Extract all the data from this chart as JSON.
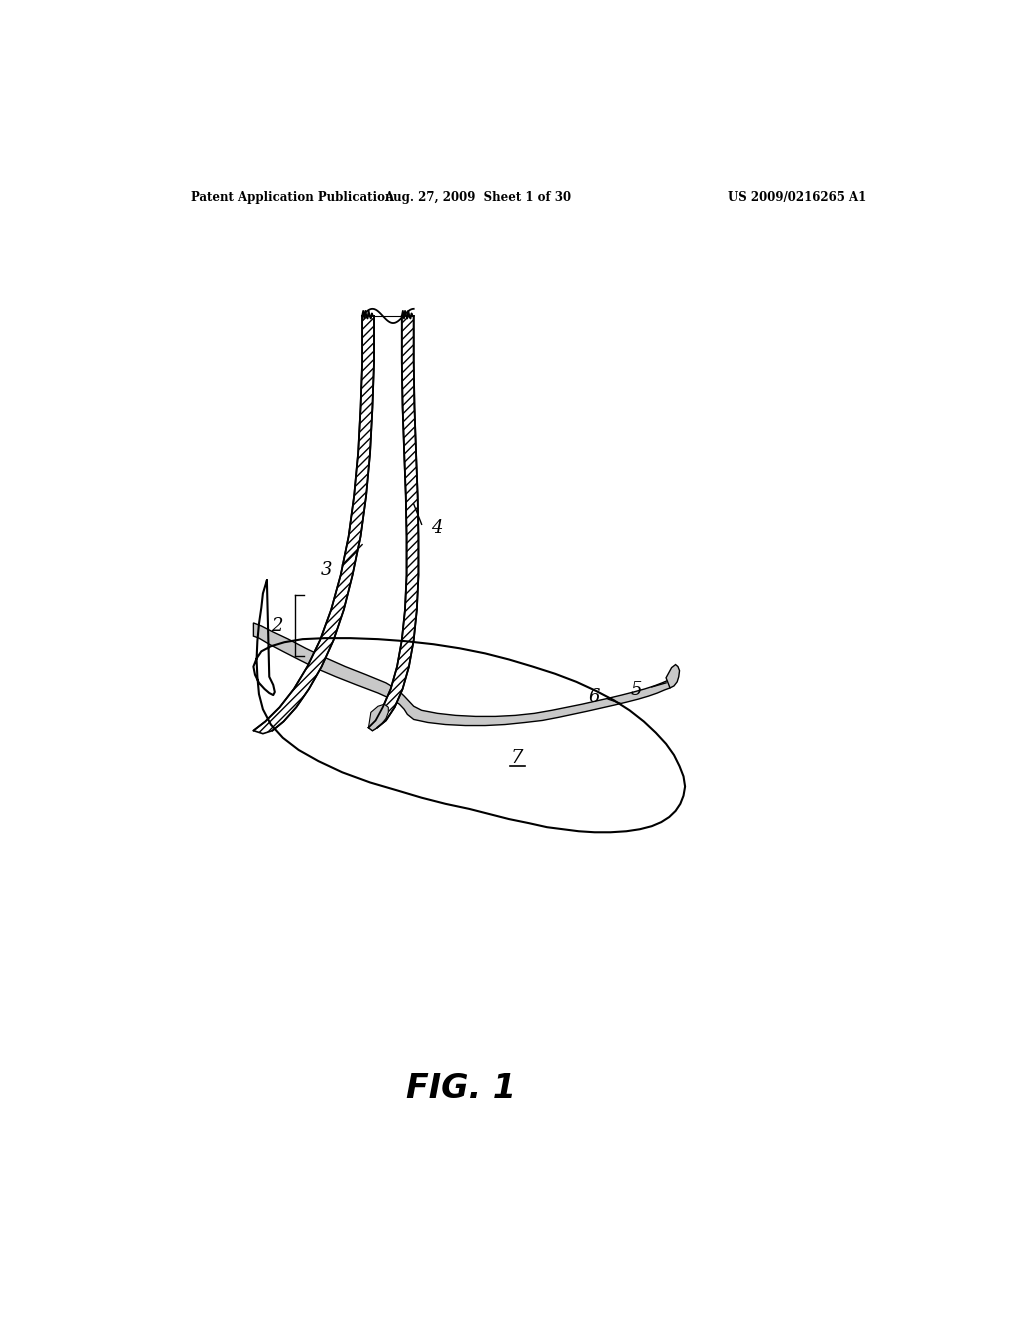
{
  "title_left": "Patent Application Publication",
  "title_mid": "Aug. 27, 2009  Sheet 1 of 30",
  "title_right": "US 2009/0216265 A1",
  "fig_label": "FIG. 1",
  "background_color": "#ffffff",
  "line_color": "#000000",
  "hatch_color": "#000000",
  "stipple_color": "#aaaaaa"
}
